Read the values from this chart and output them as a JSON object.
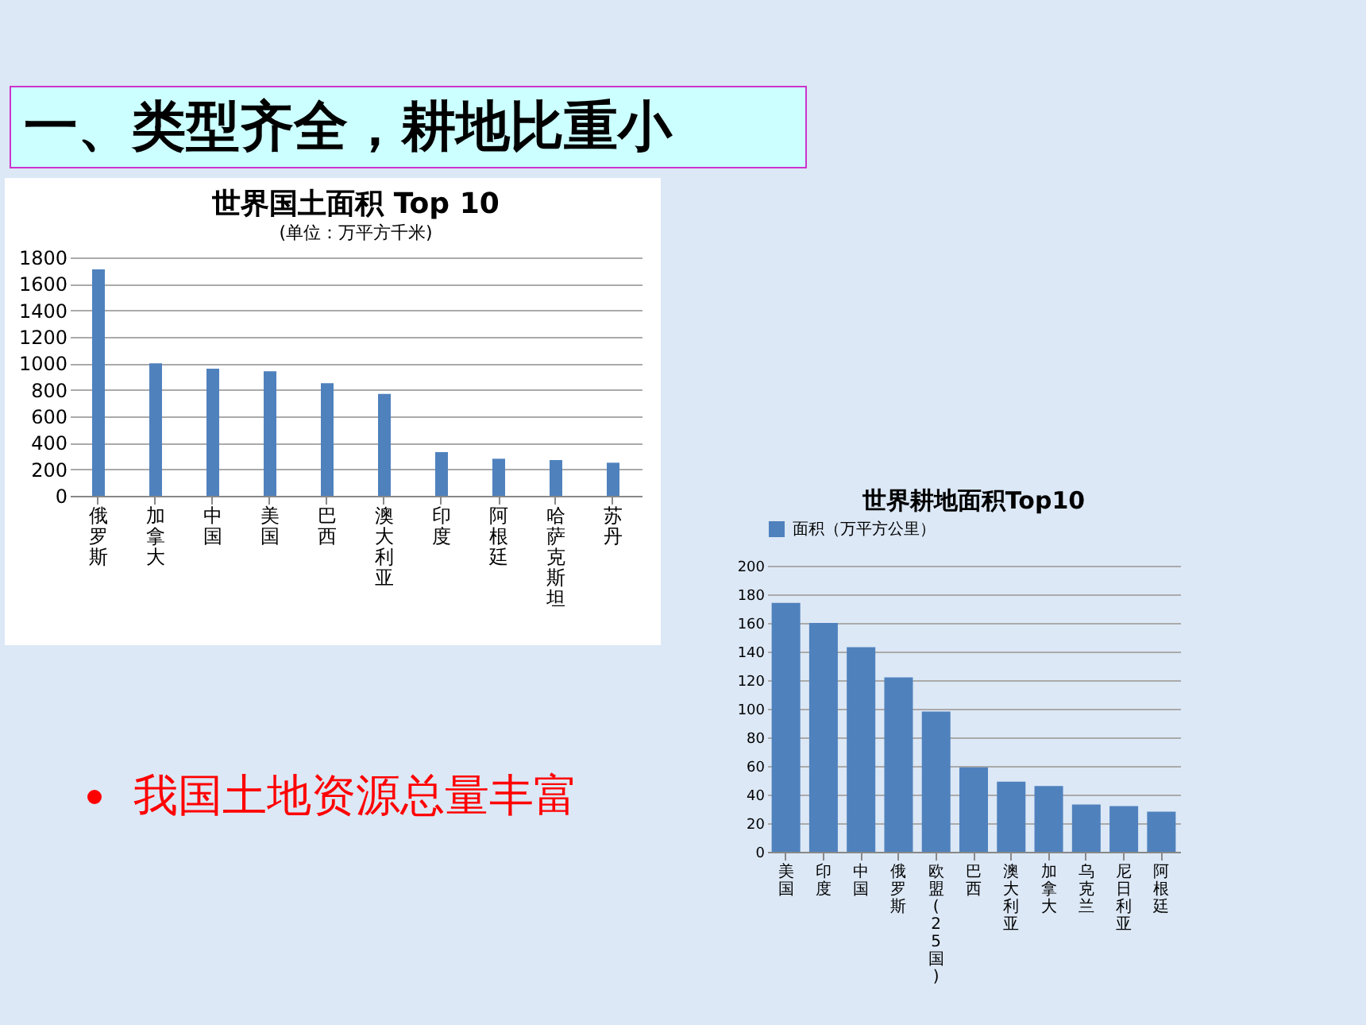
{
  "chart_data": [
    {
      "type": "bar",
      "title": "世界国土面积 Top 10",
      "subtitle": "(单位：万平方千米)",
      "annotations": [
        "一、类型齐全，耕地比重小",
        "我国土地资源总量丰富"
      ],
      "categories": [
        "俄罗斯",
        "加拿大",
        "中国",
        "美国",
        "巴西",
        "澳大利亚",
        "印度",
        "阿根廷",
        "哈萨克斯坦",
        "苏丹"
      ],
      "values": [
        1710,
        1000,
        960,
        940,
        850,
        770,
        330,
        280,
        270,
        250
      ],
      "color": "#4f81bd",
      "ylim": [
        0,
        1800
      ],
      "yticks": [
        0,
        200,
        400,
        600,
        800,
        1000,
        1200,
        1400,
        1600,
        1800
      ],
      "grid": "y"
    },
    {
      "type": "bar",
      "title": "世界耕地面积Top10",
      "legend": "top",
      "categories": [
        "美国",
        "印度",
        "中国",
        "俄罗斯",
        "欧盟(25国)",
        "巴西",
        "澳大利亚",
        "加拿大",
        "乌克兰",
        "尼日利亚",
        "阿根廷"
      ],
      "series": [
        {
          "name": "面积（万平方公里）",
          "color": "#4f81bd",
          "values": [
            174,
            160,
            143,
            122,
            98,
            59,
            49,
            46,
            33,
            32,
            28
          ]
        }
      ],
      "ylim": [
        0,
        200
      ],
      "yticks": [
        0,
        20,
        40,
        60,
        80,
        100,
        120,
        140,
        160,
        180,
        200
      ],
      "grid": "y"
    }
  ]
}
